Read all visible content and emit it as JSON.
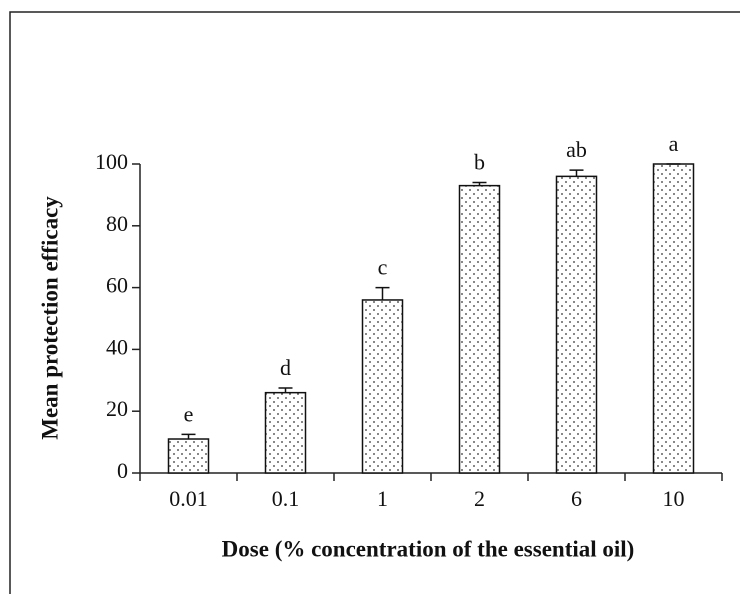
{
  "chart_data": {
    "type": "bar",
    "x_label": "Dose (% concentration of the essential oil)",
    "y_label": "Mean protection efficacy",
    "categories": [
      "0.01",
      "0.1",
      "1",
      "2",
      "6",
      "10"
    ],
    "values": [
      11,
      26,
      56,
      93,
      96,
      100
    ],
    "errors": [
      1.5,
      1.5,
      4,
      1,
      2,
      0
    ],
    "annotations": [
      "e",
      "d",
      "c",
      "b",
      "ab",
      "a"
    ],
    "color": "#ffffff",
    "ylim": [
      0,
      100
    ],
    "yticks": [
      0,
      20,
      40,
      60,
      80,
      100
    ]
  }
}
